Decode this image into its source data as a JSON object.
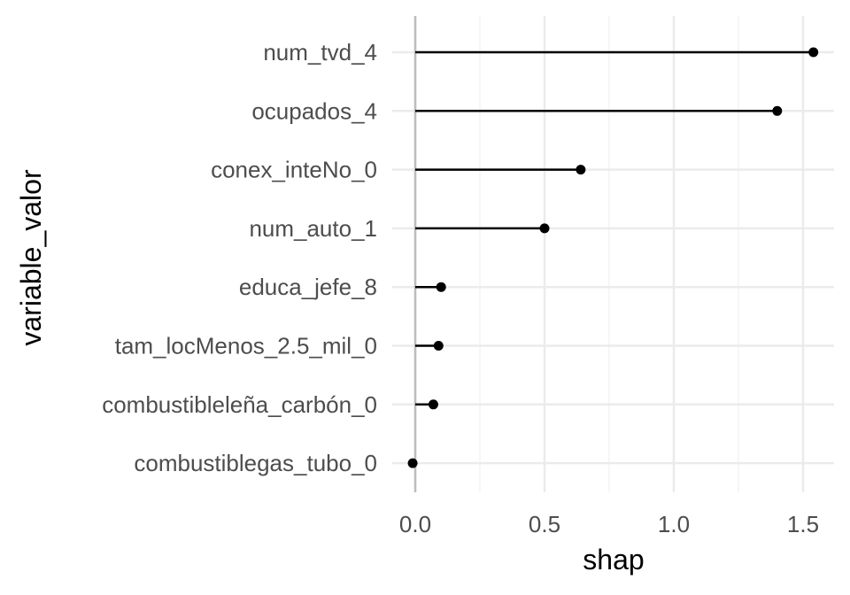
{
  "chart_data": {
    "type": "lollipop",
    "xlabel": "shap",
    "ylabel": "variable_valor",
    "xlim": [
      -0.1,
      1.6
    ],
    "x_ticks": [
      0.0,
      0.5,
      1.0,
      1.5
    ],
    "x_tick_labels": [
      "0.0",
      "0.5",
      "1.0",
      "1.5"
    ],
    "grid": true,
    "baseline": 0,
    "categories": [
      "num_tvd_4",
      "ocupados_4",
      "conex_inteNo_0",
      "num_auto_1",
      "educa_jefe_8",
      "tam_locMenos_2.5_mil_0",
      "combustibleleña_carbón_0",
      "combustiblegas_tubo_0"
    ],
    "values": [
      1.54,
      1.4,
      0.64,
      0.5,
      0.1,
      0.09,
      0.07,
      -0.01
    ],
    "colors": {
      "background": "#ffffff",
      "grid_major": "#ebebeb",
      "grid_minor": "#f3f3f3",
      "zero_line": "#bdbdbd",
      "marks": "#000000"
    }
  }
}
